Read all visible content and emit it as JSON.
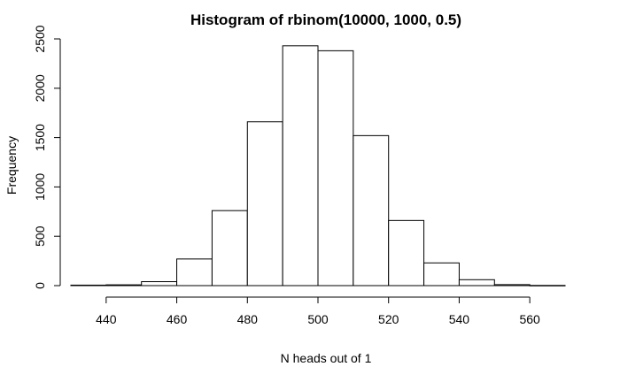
{
  "chart_data": {
    "type": "bar",
    "title": "Histogram of rbinom(10000, 1000, 0.5)",
    "xlabel": "N heads out of 1",
    "ylabel": "Frequency",
    "bins": [
      {
        "from": 430,
        "to": 440,
        "count": 5
      },
      {
        "from": 440,
        "to": 450,
        "count": 8
      },
      {
        "from": 450,
        "to": 460,
        "count": 40
      },
      {
        "from": 460,
        "to": 470,
        "count": 270
      },
      {
        "from": 470,
        "to": 480,
        "count": 760
      },
      {
        "from": 480,
        "to": 490,
        "count": 1660
      },
      {
        "from": 490,
        "to": 500,
        "count": 2430
      },
      {
        "from": 500,
        "to": 510,
        "count": 2380
      },
      {
        "from": 510,
        "to": 520,
        "count": 1520
      },
      {
        "from": 520,
        "to": 530,
        "count": 660
      },
      {
        "from": 530,
        "to": 540,
        "count": 230
      },
      {
        "from": 540,
        "to": 550,
        "count": 60
      },
      {
        "from": 550,
        "to": 560,
        "count": 10
      },
      {
        "from": 560,
        "to": 570,
        "count": 2
      }
    ],
    "xticks": [
      440,
      460,
      480,
      500,
      520,
      540,
      560
    ],
    "yticks": [
      0,
      500,
      1000,
      1500,
      2000,
      2500
    ],
    "xlim": [
      430,
      570
    ],
    "ylim": [
      0,
      2500
    ],
    "grid": false,
    "legend": "none"
  }
}
